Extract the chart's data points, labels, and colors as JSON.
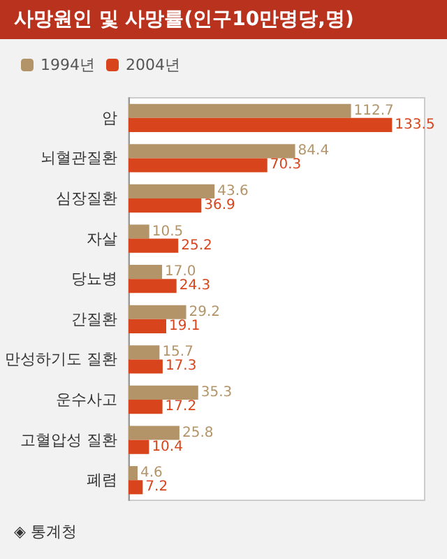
{
  "chart_data": {
    "type": "bar",
    "orientation": "horizontal",
    "title": "사망원인 및 사망률(인구10만명당,명)",
    "categories": [
      "암",
      "뇌혈관질환",
      "심장질환",
      "자살",
      "당뇨병",
      "간질환",
      "만성하기도 질환",
      "운수사고",
      "고혈압성 질환",
      "폐렴"
    ],
    "series": [
      {
        "name": "1994년",
        "color": "#b39469",
        "values": [
          112.7,
          84.4,
          43.6,
          10.5,
          17.0,
          29.2,
          15.7,
          35.3,
          25.8,
          4.6
        ],
        "value_labels": [
          "112.7",
          "84.4",
          "43.6",
          "10.5",
          "17.0",
          "29.2",
          "15.7",
          "35.3",
          "25.8",
          "4.6"
        ]
      },
      {
        "name": "2004년",
        "color": "#d8441c",
        "values": [
          133.5,
          70.3,
          36.9,
          25.2,
          24.3,
          19.1,
          17.3,
          17.2,
          10.4,
          7.2
        ],
        "value_labels": [
          "133.5",
          "70.3",
          "36.9",
          "25.2",
          "24.3",
          "19.1",
          "17.3",
          "17.2",
          "10.4",
          "7.2"
        ]
      }
    ],
    "legend": "top left",
    "annotations": [
      "◈ 통계청"
    ]
  }
}
